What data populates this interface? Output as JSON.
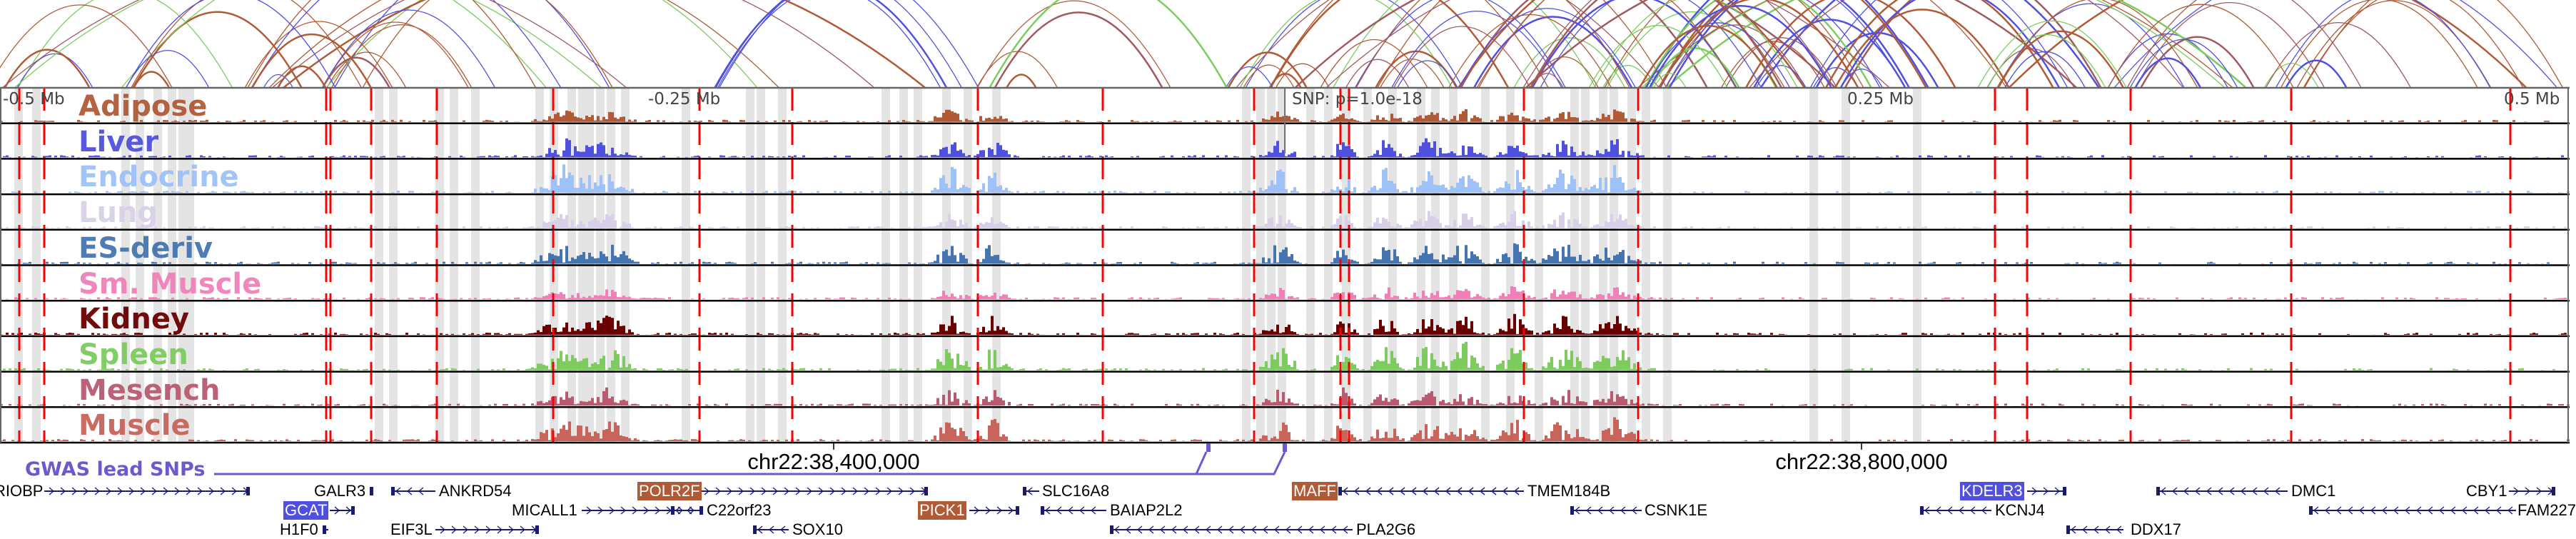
{
  "tracks": [
    {
      "label": "Adipose",
      "color": "#b05a36"
    },
    {
      "label": "Liver",
      "color": "#5050e0"
    },
    {
      "label": "Endocrine",
      "color": "#9ec1f7"
    },
    {
      "label": "Lung",
      "color": "#d8d0e8"
    },
    {
      "label": "ES-deriv",
      "color": "#4575b0"
    },
    {
      "label": "Sm. Muscle",
      "color": "#f080b8"
    },
    {
      "label": "Kidney",
      "color": "#6b0000"
    },
    {
      "label": "Spleen",
      "color": "#7ccc5e"
    },
    {
      "label": "Mesench",
      "color": "#b85a70"
    },
    {
      "label": "Muscle",
      "color": "#c8645a"
    }
  ],
  "axis": {
    "minus_05": "-0.5 Mb",
    "minus_025": "-0.25 Mb",
    "snp": "SNP: p=1.0e-18",
    "plus_025": "0.25 Mb",
    "plus_05": "0.5 Mb"
  },
  "coords": {
    "left": "chr22:38,400,000",
    "right": "chr22:38,800,000"
  },
  "gwas": {
    "label": "GWAS lead SNPs",
    "color": "#6a5acd"
  },
  "genes": [
    {
      "name": "RIOBP",
      "highlight": null
    },
    {
      "name": "GALR3",
      "highlight": null
    },
    {
      "name": "ANKRD54",
      "highlight": null
    },
    {
      "name": "POLR2F",
      "highlight": "#b05a36"
    },
    {
      "name": "SLC16A8",
      "highlight": null
    },
    {
      "name": "MAFF",
      "highlight": "#b05a36"
    },
    {
      "name": "TMEM184B",
      "highlight": null
    },
    {
      "name": "KDELR3",
      "highlight": "#5050e0"
    },
    {
      "name": "DMC1",
      "highlight": null
    },
    {
      "name": "CBY1",
      "highlight": null
    },
    {
      "name": "GCAT",
      "highlight": "#5050e0"
    },
    {
      "name": "MICALL1",
      "highlight": null
    },
    {
      "name": "C22orf23",
      "highlight": null
    },
    {
      "name": "PICK1",
      "highlight": "#b05a36"
    },
    {
      "name": "BAIAP2L2",
      "highlight": null
    },
    {
      "name": "CSNK1E",
      "highlight": null
    },
    {
      "name": "KCNJ4",
      "highlight": null
    },
    {
      "name": "FAM227",
      "highlight": null
    },
    {
      "name": "H1F0",
      "highlight": null
    },
    {
      "name": "EIF3L",
      "highlight": null
    },
    {
      "name": "SOX10",
      "highlight": null
    },
    {
      "name": "PLA2G6",
      "highlight": null
    },
    {
      "name": "DDX17",
      "highlight": null
    }
  ]
}
